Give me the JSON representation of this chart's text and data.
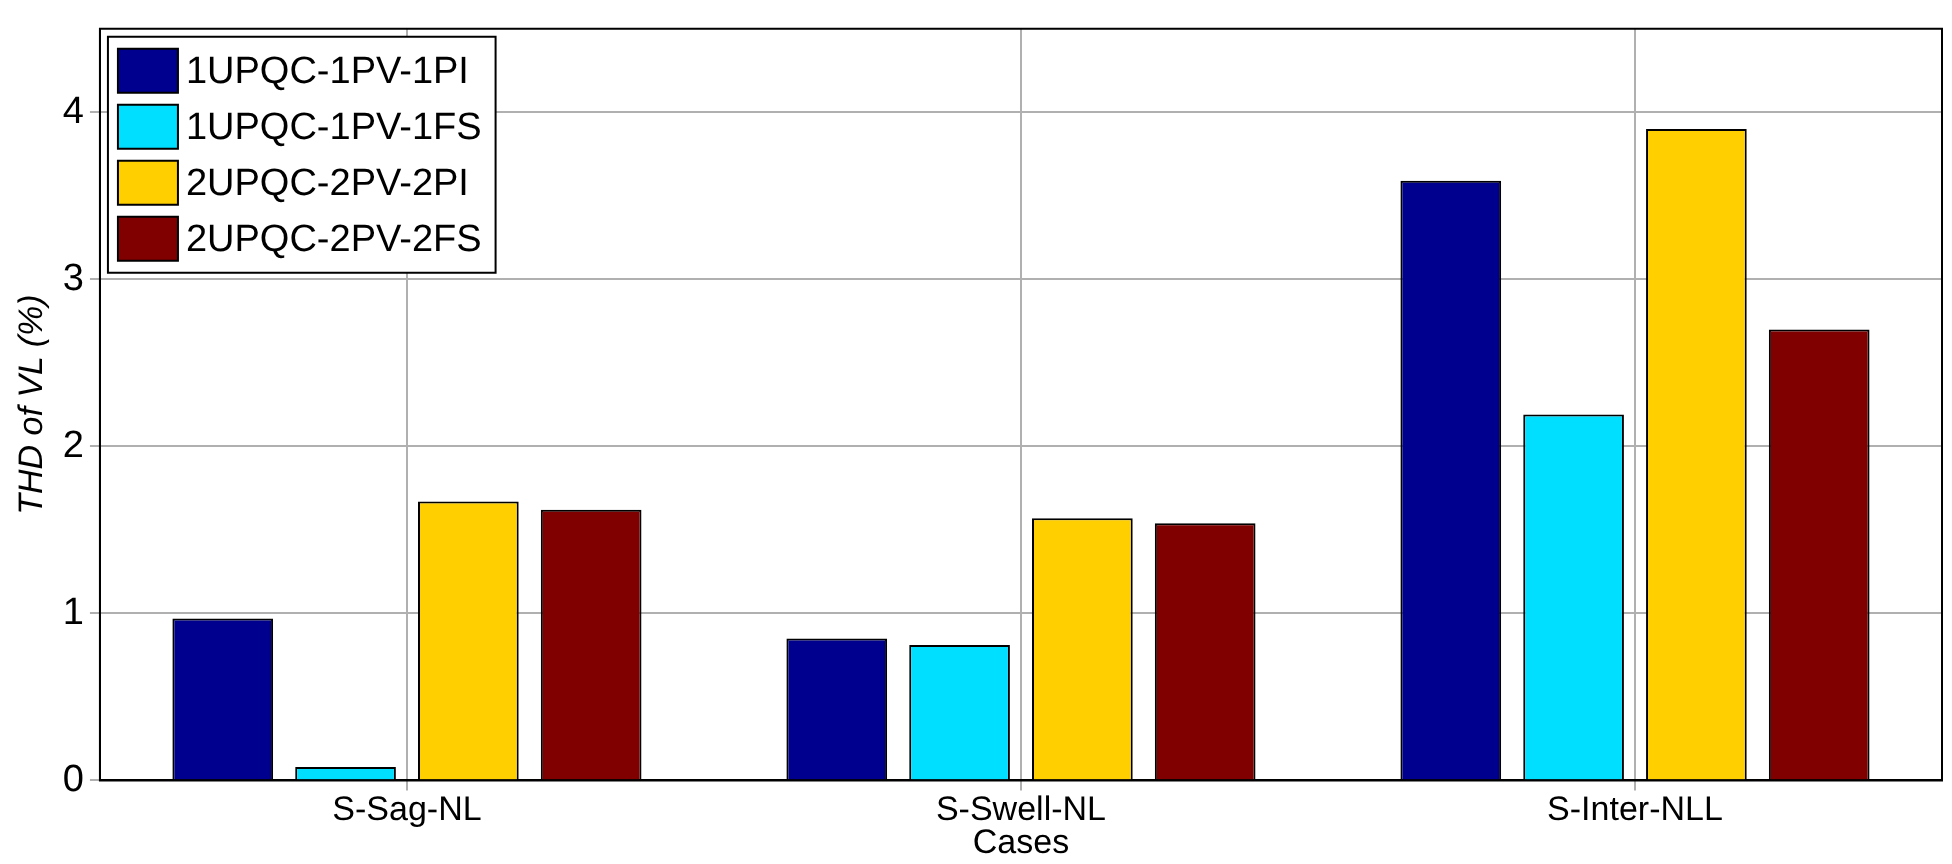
{
  "chart_data": {
    "type": "bar",
    "xlabel": "Cases",
    "ylabel": "THD of VL (%)",
    "categories": [
      "S-Sag-NL",
      "S-Swell-NL",
      "S-Inter-NLL"
    ],
    "series": [
      {
        "name": "1UPQC-1PV-1PI",
        "color": "#00008f",
        "values": [
          0.97,
          0.85,
          3.59
        ]
      },
      {
        "name": "1UPQC-1PV-1FS",
        "color": "#00dfff",
        "values": [
          0.08,
          0.81,
          2.19
        ]
      },
      {
        "name": "2UPQC-2PV-2PI",
        "color": "#ffcf00",
        "values": [
          1.67,
          1.57,
          3.9
        ]
      },
      {
        "name": "2UPQC-2PV-2FS",
        "color": "#800000",
        "values": [
          1.62,
          1.54,
          2.7
        ]
      }
    ],
    "ylim": [
      0,
      4.5
    ],
    "yticks": [
      0,
      1,
      2,
      3,
      4
    ],
    "grid": true,
    "legend": "top left"
  }
}
